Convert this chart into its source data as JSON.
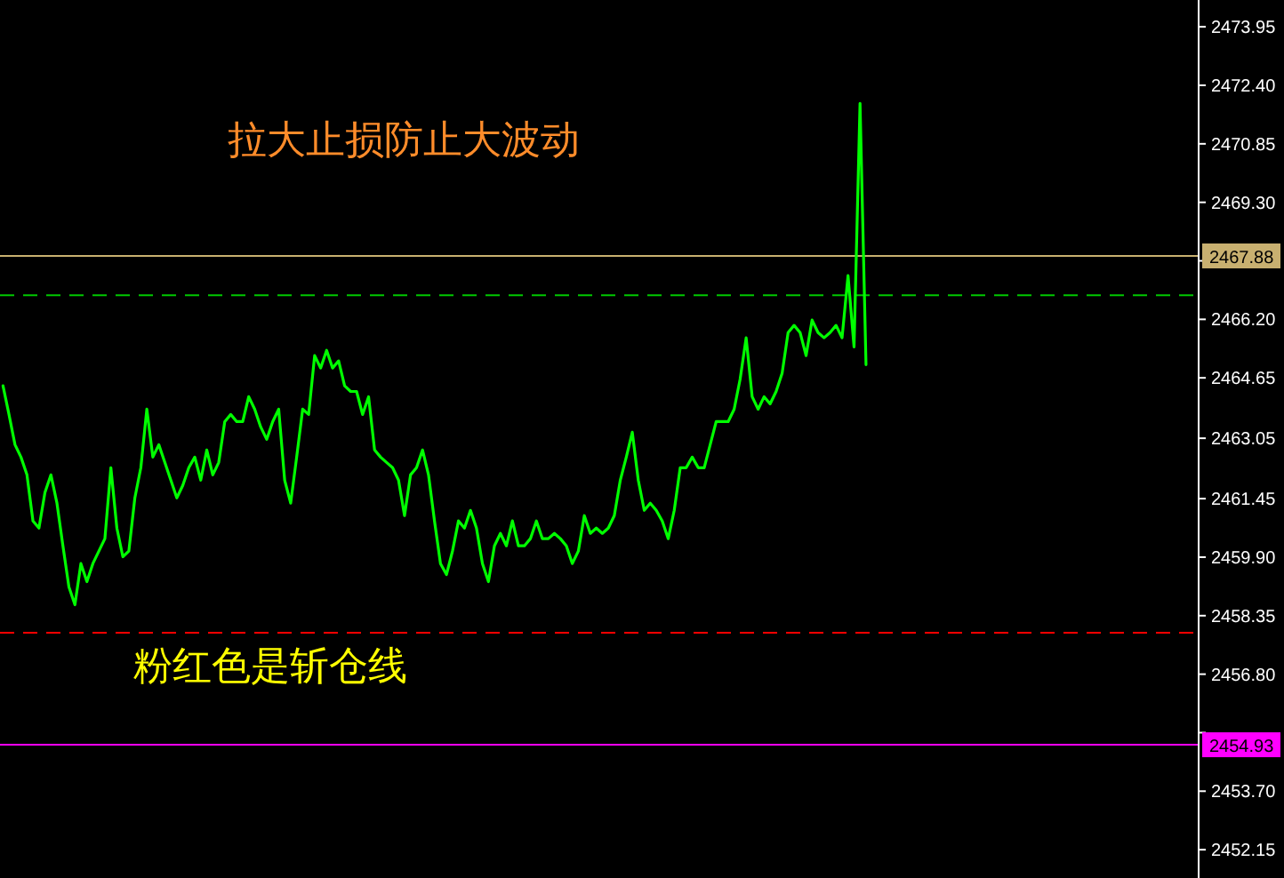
{
  "chart_data": {
    "type": "line",
    "annotations": [
      "拉大止损防止大波动",
      "粉红色是斩仓线"
    ],
    "categories": [
      null,
      null,
      null,
      null,
      null,
      null,
      null,
      null,
      null,
      null,
      null,
      null,
      null,
      null,
      null,
      null,
      null,
      null,
      null,
      null,
      null,
      null,
      null,
      null,
      null,
      null,
      null,
      null,
      null,
      null,
      null,
      null,
      null,
      null,
      null,
      null,
      null,
      null,
      null,
      null,
      null,
      null,
      null,
      null,
      null,
      null,
      null,
      null,
      null,
      null,
      null,
      null,
      null,
      null,
      null,
      null,
      null,
      null,
      null,
      null,
      null,
      null,
      null,
      null,
      null,
      null,
      null,
      null,
      null,
      null,
      null,
      null,
      null,
      null,
      null,
      null,
      null,
      null,
      null,
      null,
      null,
      null,
      null,
      null,
      null,
      null,
      null,
      null,
      null,
      null,
      null,
      null,
      null,
      null,
      null,
      null,
      null,
      null,
      null,
      null,
      null,
      null,
      null,
      null,
      null,
      null,
      null,
      null,
      null,
      null,
      null,
      null,
      null,
      null,
      null,
      null,
      null,
      null,
      null,
      null,
      null,
      null,
      null,
      null,
      null,
      null,
      null,
      null,
      null,
      null,
      null,
      null,
      null,
      null,
      null,
      null,
      null,
      null,
      null,
      null,
      null,
      null,
      null,
      null,
      null,
      null,
      null,
      null,
      null,
      null,
      null,
      null,
      null,
      null,
      null,
      null,
      null,
      null,
      null,
      null,
      null,
      null,
      null,
      null,
      null,
      null,
      null,
      null,
      null,
      null,
      null,
      null,
      null,
      null,
      null,
      null,
      null,
      null,
      null,
      null,
      null,
      null,
      null,
      null,
      null,
      null,
      null,
      null,
      null,
      null,
      null,
      null,
      null,
      null,
      null,
      null,
      null,
      null,
      null,
      null
    ],
    "series": [
      {
        "color": "#00ff00",
        "values": [
          2464.44,
          2463.68,
          2462.88,
          2462.55,
          2462.08,
          2460.86,
          2460.67,
          2461.61,
          2462.08,
          2461.33,
          2460.2,
          2459.11,
          2458.64,
          2459.73,
          2459.25,
          2459.73,
          2460.06,
          2460.39,
          2462.27,
          2460.67,
          2459.91,
          2460.06,
          2461.47,
          2462.27,
          2463.82,
          2462.55,
          2462.88,
          2462.41,
          2461.94,
          2461.47,
          2461.8,
          2462.27,
          2462.55,
          2461.94,
          2462.74,
          2462.08,
          2462.41,
          2463.49,
          2463.68,
          2463.49,
          2463.49,
          2464.15,
          2463.82,
          2463.35,
          2463.02,
          2463.49,
          2463.82,
          2461.94,
          2461.33,
          2462.55,
          2463.82,
          2463.68,
          2465.24,
          2464.91,
          2465.38,
          2464.91,
          2465.1,
          2464.44,
          2464.29,
          2464.29,
          2463.68,
          2464.15,
          2462.74,
          2462.55,
          2462.41,
          2462.27,
          2461.94,
          2461.0,
          2462.08,
          2462.27,
          2462.74,
          2462.08,
          2460.86,
          2459.73,
          2459.44,
          2460.06,
          2460.86,
          2460.67,
          2461.14,
          2460.67,
          2459.73,
          2459.25,
          2460.2,
          2460.53,
          2460.2,
          2460.86,
          2460.2,
          2460.2,
          2460.39,
          2460.86,
          2460.39,
          2460.39,
          2460.53,
          2460.39,
          2460.2,
          2459.73,
          2460.06,
          2461.0,
          2460.53,
          2460.67,
          2460.53,
          2460.67,
          2461.0,
          2461.94,
          2462.55,
          2463.21,
          2461.94,
          2461.14,
          2461.33,
          2461.14,
          2460.86,
          2460.39,
          2461.14,
          2462.27,
          2462.27,
          2462.55,
          2462.27,
          2462.27,
          2462.88,
          2463.49,
          2463.49,
          2463.49,
          2463.82,
          2464.62,
          2465.71,
          2464.15,
          2463.82,
          2464.15,
          2463.96,
          2464.29,
          2464.77,
          2465.85,
          2466.04,
          2465.85,
          2465.24,
          2466.18,
          2465.85,
          2465.71,
          2465.85,
          2466.04,
          2465.71,
          2467.36,
          2465.47,
          2471.92,
          2465.0,
          null,
          null,
          null,
          null,
          null,
          null,
          null,
          null,
          null,
          null,
          null,
          null,
          null,
          null,
          null,
          null,
          null,
          null,
          null,
          null,
          null,
          null,
          null,
          null,
          null,
          null,
          null,
          null,
          null,
          null,
          null,
          null,
          null,
          null,
          null,
          null,
          null,
          null,
          null,
          null,
          null,
          null,
          null,
          null,
          null,
          null,
          null,
          null,
          null,
          null,
          null,
          null,
          null,
          null,
          null
        ]
      }
    ],
    "ylim": [
      2451.4,
      2474.66
    ],
    "yticks": [
      2473.95,
      {
        "value": 2472.4,
        "label": "2472.40"
      },
      2470.85,
      {
        "value": 2469.3,
        "label": "2469.30"
      },
      {
        "value": 2467.75,
        "label": null
      },
      {
        "value": 2466.2,
        "label": "2466.20"
      },
      2464.65,
      2463.05,
      2461.45,
      {
        "value": 2459.9,
        "label": "2459.90"
      },
      2458.35,
      {
        "value": 2456.8,
        "label": "2456.80"
      },
      {
        "value": 2455.25,
        "label": null
      },
      {
        "value": 2453.7,
        "label": "2453.70"
      },
      2452.15
    ],
    "tick_labels": "y",
    "grid": false,
    "ref_lines": [
      {
        "axis": "y",
        "value": 2467.88,
        "label": "2467.88",
        "color": "#c8b070",
        "line_style": "solid"
      },
      {
        "axis": "y",
        "value": 2466.84,
        "color": "#00c800",
        "line_style": "dashed"
      },
      {
        "axis": "y",
        "value": 2457.9,
        "color": "#ff0000",
        "line_style": "dashed"
      },
      {
        "axis": "y",
        "value": 2454.93,
        "label": "2454.93",
        "color": "#ff00ff",
        "line_style": "solid"
      }
    ]
  }
}
